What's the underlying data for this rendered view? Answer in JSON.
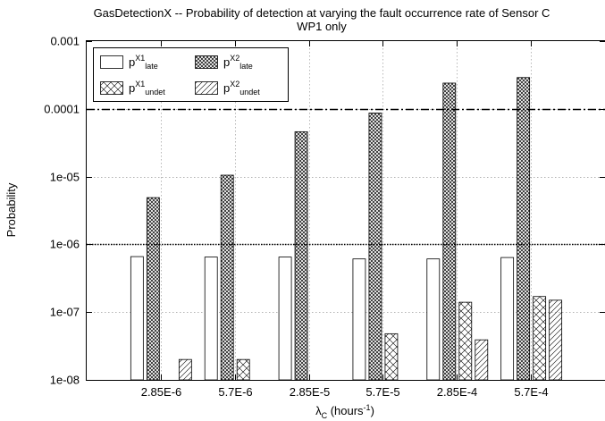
{
  "chart_data": {
    "type": "bar",
    "title": "GasDetectionX -- Probability of detection at varying the fault occurrence rate of Sensor C",
    "subtitle": "WP1 only",
    "xlabel": {
      "main": "λ",
      "sub": "C",
      "pre": " (hours",
      "sup": "-1",
      "post": ")"
    },
    "ylabel": "Probability",
    "yscale": "log",
    "ylim": [
      1e-08,
      0.001
    ],
    "y_ticks": [
      1e-08,
      1e-07,
      1e-06,
      1e-05,
      0.0001,
      0.001
    ],
    "y_tick_labels": [
      "1e-08",
      "1e-07",
      "1e-06",
      "1e-05",
      "0.0001",
      "0.001"
    ],
    "grid": true,
    "legend_position": "top-left",
    "categories": [
      "2.85E-6",
      "5.7E-6",
      "2.85E-5",
      "5.7E-5",
      "2.85E-4",
      "5.7E-4"
    ],
    "series": [
      {
        "legend": {
          "base": "p",
          "sup": "X1",
          "sub": "late"
        },
        "pattern": "empty",
        "values": [
          6.6e-07,
          6.5e-07,
          6.5e-07,
          6.1e-07,
          6.1e-07,
          6.4e-07
        ]
      },
      {
        "legend": {
          "base": "p",
          "sup": "X2",
          "sub": "late"
        },
        "pattern": "crosshatch",
        "values": [
          4.9e-06,
          1.05e-05,
          4.6e-05,
          8.7e-05,
          0.00024,
          0.00029
        ]
      },
      {
        "legend": {
          "base": "p",
          "sup": "X1",
          "sub": "undet"
        },
        "pattern": "sparse-cross",
        "values": [
          null,
          2e-08,
          null,
          4.8e-08,
          1.4e-07,
          1.7e-07
        ]
      },
      {
        "legend": {
          "base": "p",
          "sup": "X2",
          "sub": "undet"
        },
        "pattern": "diagonal",
        "values": [
          2e-08,
          null,
          null,
          null,
          3.9e-08,
          1.5e-07
        ]
      }
    ],
    "reference_lines": [
      {
        "value": 0.0001,
        "style": "dash-dot"
      },
      {
        "value": 1e-06,
        "style": "dotted"
      }
    ]
  }
}
